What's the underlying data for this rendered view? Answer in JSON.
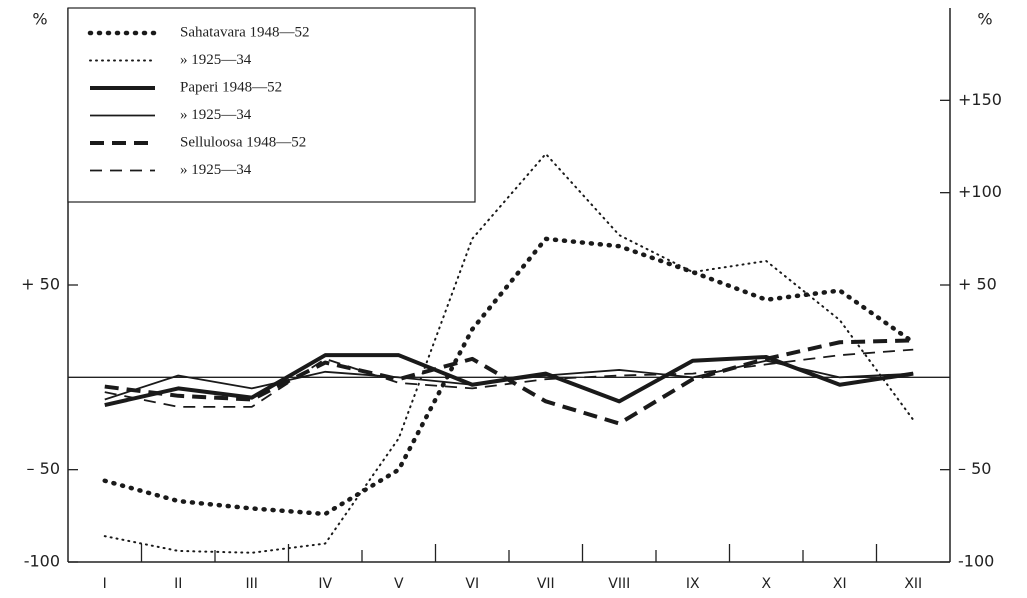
{
  "chart_data": {
    "type": "line",
    "y_label": "%",
    "y2_label": "%",
    "categories": [
      "I",
      "II",
      "III",
      "IV",
      "V",
      "VI",
      "VII",
      "VIII",
      "IX",
      "X",
      "XI",
      "XII"
    ],
    "ylim": [
      -100,
      200
    ],
    "yticks": [
      {
        "value": 50,
        "label": "+ 50"
      },
      {
        "value": -50,
        "label": "– 50"
      },
      {
        "value": -100,
        "label": "-100"
      }
    ],
    "y2lim": [
      -100,
      200
    ],
    "y2ticks": [
      {
        "value": 150,
        "label": "+150"
      },
      {
        "value": 100,
        "label": "+100"
      },
      {
        "value": 50,
        "label": "+ 50"
      },
      {
        "value": -50,
        "label": "– 50"
      },
      {
        "value": -100,
        "label": "-100"
      }
    ],
    "series": [
      {
        "name": "Sahatavara 1948—52",
        "color": "#1a1a1a",
        "style": "dotted",
        "width": 4.5,
        "values": [
          -56,
          -67,
          -71,
          -74,
          -50,
          26,
          75,
          71,
          57,
          42,
          47,
          19
        ]
      },
      {
        "name": "» 1925—34",
        "color": "#1a1a1a",
        "style": "dotted",
        "width": 2,
        "values": [
          -86,
          -94,
          -95,
          -90,
          -33,
          75,
          121,
          77,
          57,
          63,
          31,
          -23
        ]
      },
      {
        "name": "Paperi 1948—52",
        "color": "#1a1a1a",
        "style": "solid",
        "width": 4,
        "values": [
          -15,
          -6,
          -11,
          12,
          12,
          -4,
          2,
          -13,
          9,
          11,
          -4,
          2
        ]
      },
      {
        "name": "» 1925—34",
        "color": "#1a1a1a",
        "style": "solid",
        "width": 1.8,
        "values": [
          -12,
          1,
          -6,
          3,
          0,
          -4,
          1,
          4,
          0,
          9,
          0,
          2
        ]
      },
      {
        "name": "Selluloosa 1948—52",
        "color": "#1a1a1a",
        "style": "dashed",
        "width": 4,
        "values": [
          -5,
          -10,
          -12,
          8,
          -1,
          10,
          -13,
          -25,
          -1,
          10,
          19,
          20
        ]
      },
      {
        "name": "» 1925—34",
        "color": "#1a1a1a",
        "style": "dashed",
        "width": 1.8,
        "values": [
          -8,
          -16,
          -16,
          10,
          -3,
          -6,
          -1,
          1,
          2,
          7,
          12,
          15
        ]
      }
    ]
  }
}
